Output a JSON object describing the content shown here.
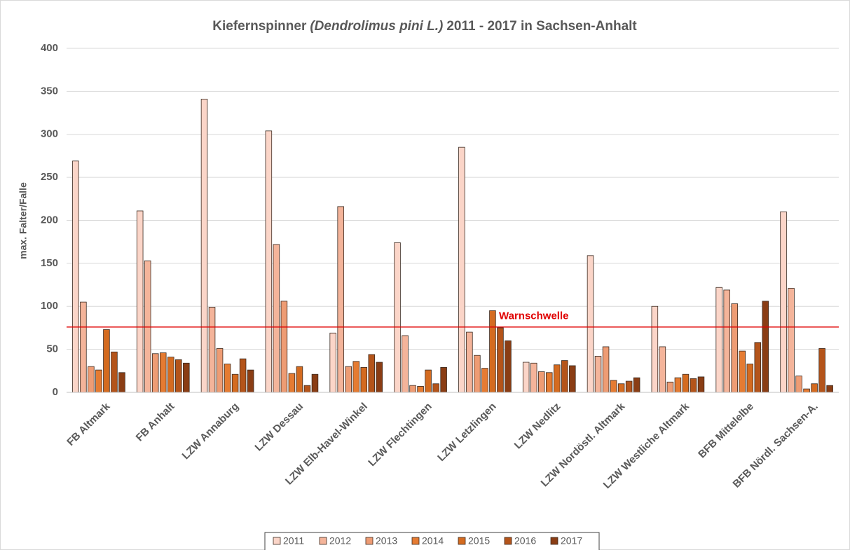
{
  "chart_data": {
    "type": "bar",
    "title": {
      "prefix": "Kiefernspinner",
      "italic": "(Dendrolimus pini L.)",
      "suffix": "2011 - 2017 in Sachsen-Anhalt"
    },
    "y_label": "max. Falter/Falle",
    "categories": [
      "FB Altmark",
      "FB Anhalt",
      "LZW Annaburg",
      "LZW Dessau",
      "LZW Elb-Havel-Winkel",
      "LZW Flechtingen",
      "LZW Letzlingen",
      "LZW Nedlitz",
      "LZW Nordöstl. Altmark",
      "LZW Westliche Altmark",
      "BFB Mittelelbe",
      "BFB Nördl. Sachsen-A."
    ],
    "series": [
      {
        "name": "2011",
        "color": "#fbd5c8",
        "values": [
          269,
          211,
          341,
          304,
          69,
          174,
          285,
          35,
          159,
          100,
          122,
          210
        ]
      },
      {
        "name": "2012",
        "color": "#f4b49a",
        "values": [
          105,
          153,
          99,
          172,
          216,
          66,
          70,
          34,
          42,
          53,
          119,
          121
        ]
      },
      {
        "name": "2013",
        "color": "#ee9c74",
        "values": [
          30,
          45,
          51,
          106,
          30,
          8,
          43,
          24,
          53,
          12,
          103,
          19
        ]
      },
      {
        "name": "2014",
        "color": "#e57b32",
        "values": [
          26,
          46,
          33,
          22,
          36,
          7,
          28,
          23,
          14,
          17,
          48,
          4
        ]
      },
      {
        "name": "2015",
        "color": "#d46b20",
        "values": [
          73,
          41,
          21,
          30,
          29,
          26,
          95,
          32,
          10,
          21,
          33,
          10
        ]
      },
      {
        "name": "2016",
        "color": "#b4541a",
        "values": [
          47,
          38,
          39,
          8,
          44,
          10,
          75,
          37,
          13,
          16,
          58,
          51
        ]
      },
      {
        "name": "2017",
        "color": "#8a3d14",
        "values": [
          23,
          34,
          26,
          21,
          35,
          29,
          60,
          31,
          17,
          18,
          106,
          8
        ]
      }
    ],
    "threshold": {
      "value": 76,
      "label": "Warnschwelle",
      "color": "#e00000"
    },
    "ylim": [
      0,
      400
    ],
    "yticks": [
      0,
      50,
      100,
      150,
      200,
      250,
      300,
      350,
      400
    ],
    "grid": true
  }
}
